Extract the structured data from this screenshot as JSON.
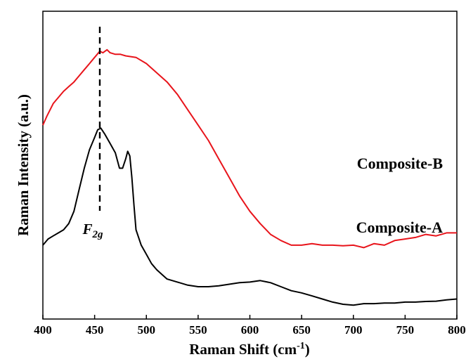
{
  "chart_data": {
    "type": "line",
    "title": "",
    "xlabel": "Raman Shift (cm",
    "xlabel_sup": "-1",
    "xlabel_tail": ")",
    "ylabel": "Raman Intensity (a.u.)",
    "xlim": [
      400,
      800
    ],
    "ylim": [
      0,
      1
    ],
    "x_ticks": [
      400,
      450,
      500,
      550,
      600,
      650,
      700,
      750,
      800
    ],
    "y_ticks_shown": false,
    "grid": false,
    "legend": "none",
    "annotation": {
      "x": 455,
      "base": "F",
      "sub": "2g"
    },
    "series": [
      {
        "name": "Composite-B",
        "color": "#e8141b",
        "x": [
          400,
          404,
          410,
          415,
          420,
          425,
          430,
          435,
          440,
          445,
          450,
          455,
          458,
          462,
          465,
          470,
          475,
          480,
          490,
          500,
          510,
          520,
          530,
          540,
          550,
          560,
          570,
          580,
          590,
          600,
          610,
          620,
          630,
          640,
          650,
          660,
          670,
          680,
          690,
          700,
          710,
          720,
          730,
          740,
          750,
          760,
          770,
          780,
          790,
          800
        ],
        "y": [
          0.63,
          0.66,
          0.7,
          0.72,
          0.74,
          0.755,
          0.77,
          0.79,
          0.81,
          0.83,
          0.85,
          0.87,
          0.865,
          0.875,
          0.865,
          0.86,
          0.86,
          0.855,
          0.85,
          0.83,
          0.8,
          0.77,
          0.73,
          0.68,
          0.63,
          0.58,
          0.52,
          0.46,
          0.4,
          0.35,
          0.31,
          0.275,
          0.255,
          0.24,
          0.24,
          0.245,
          0.24,
          0.24,
          0.238,
          0.24,
          0.232,
          0.245,
          0.24,
          0.255,
          0.26,
          0.265,
          0.275,
          0.27,
          0.28,
          0.28
        ]
      },
      {
        "name": "Composite-A",
        "color": "#000000",
        "x": [
          400,
          405,
          410,
          415,
          420,
          425,
          430,
          435,
          440,
          445,
          450,
          453,
          456,
          460,
          465,
          470,
          474,
          477,
          480,
          482,
          484,
          486,
          488,
          490,
          495,
          500,
          505,
          510,
          515,
          520,
          530,
          540,
          550,
          560,
          570,
          580,
          590,
          600,
          610,
          620,
          630,
          640,
          650,
          660,
          670,
          680,
          690,
          700,
          710,
          720,
          730,
          740,
          750,
          760,
          770,
          780,
          790,
          800
        ],
        "y": [
          0.24,
          0.26,
          0.27,
          0.28,
          0.29,
          0.31,
          0.35,
          0.42,
          0.49,
          0.55,
          0.59,
          0.615,
          0.62,
          0.6,
          0.57,
          0.54,
          0.49,
          0.49,
          0.52,
          0.545,
          0.53,
          0.46,
          0.37,
          0.29,
          0.24,
          0.21,
          0.18,
          0.16,
          0.145,
          0.13,
          0.12,
          0.11,
          0.105,
          0.105,
          0.108,
          0.113,
          0.118,
          0.12,
          0.125,
          0.118,
          0.105,
          0.092,
          0.085,
          0.075,
          0.065,
          0.055,
          0.048,
          0.045,
          0.05,
          0.05,
          0.052,
          0.052,
          0.055,
          0.055,
          0.057,
          0.058,
          0.062,
          0.065
        ]
      }
    ]
  }
}
